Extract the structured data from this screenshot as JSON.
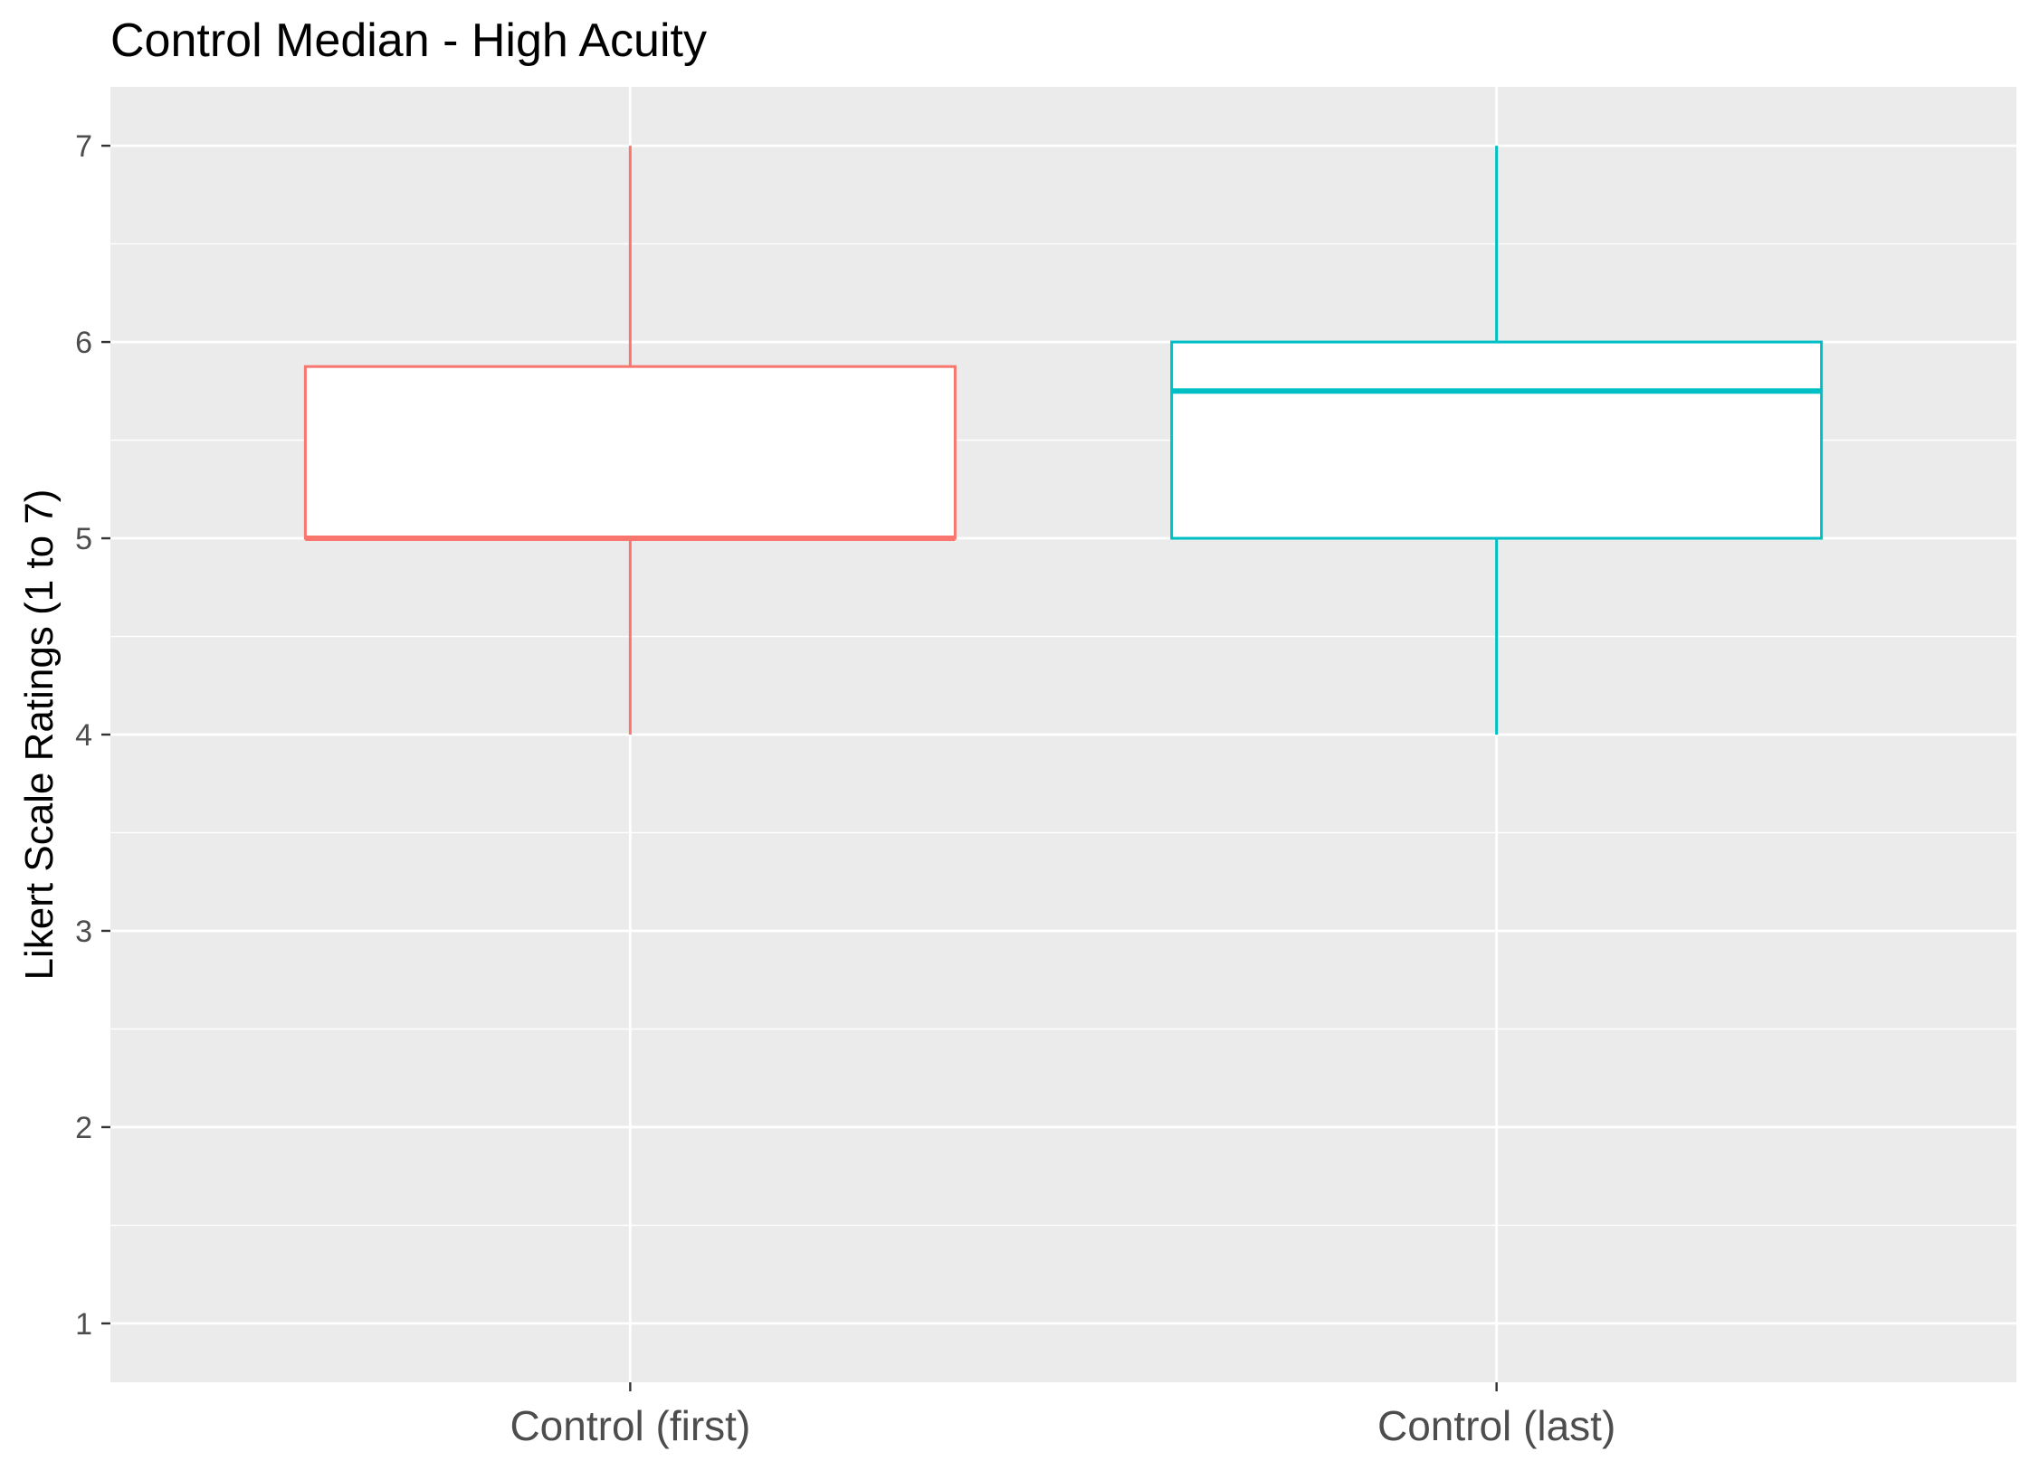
{
  "chart_data": {
    "type": "boxplot",
    "title": "Control Median - High Acuity",
    "xlabel": "",
    "ylabel": "Likert Scale Ratings (1 to 7)",
    "ylim": [
      0.7,
      7.3
    ],
    "yticks": [
      "1",
      "2",
      "3",
      "4",
      "5",
      "6",
      "7"
    ],
    "grid": true,
    "legend": "none",
    "panel_background": "#ebebeb",
    "grid_color": "#ffffff",
    "categories": [
      "Control (first)",
      "Control (last)"
    ],
    "boxes": [
      {
        "category": "Control (first)",
        "min": 4,
        "q1": 5,
        "median": 5,
        "q3": 5.875,
        "max": 7,
        "color": "#F8766D"
      },
      {
        "category": "Control (last)",
        "min": 4,
        "q1": 5,
        "median": 5.75,
        "q3": 6,
        "max": 7,
        "color": "#00BFC4"
      }
    ]
  }
}
